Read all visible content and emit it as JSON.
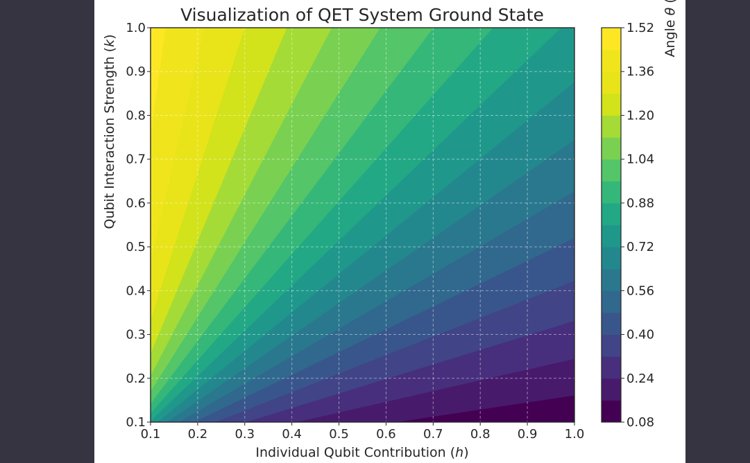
{
  "chart_data": {
    "type": "heatmap",
    "subtype": "filled-contour",
    "title": "Visualization of QET System Ground State",
    "xlabel_text": "Individual Qubit Contribution (",
    "xlabel_var": "h",
    "xlabel_close": ")",
    "ylabel_text": "Qubit Interaction Strength (",
    "ylabel_var": "k",
    "ylabel_close": ")",
    "colorbar_label_text": "Angle ",
    "colorbar_label_var": "θ",
    "colorbar_label_rest": " (radians)",
    "xlim": [
      0.1,
      1.0
    ],
    "ylim": [
      0.1,
      1.0
    ],
    "xticks": [
      "0.1",
      "0.2",
      "0.3",
      "0.4",
      "0.5",
      "0.6",
      "0.7",
      "0.8",
      "0.9",
      "1.0"
    ],
    "yticks": [
      "0.1",
      "0.2",
      "0.3",
      "0.4",
      "0.5",
      "0.6",
      "0.7",
      "0.8",
      "0.9",
      "1.0"
    ],
    "colorbar_range": [
      0.08,
      1.52
    ],
    "colorbar_ticks": [
      "0.08",
      "0.24",
      "0.40",
      "0.56",
      "0.72",
      "0.88",
      "1.04",
      "1.20",
      "1.36",
      "1.52"
    ],
    "colorbar_tick_values": [
      0.08,
      0.24,
      0.4,
      0.56,
      0.72,
      0.88,
      1.04,
      1.2,
      1.36,
      1.52
    ],
    "contour_levels": [
      0.08,
      0.16,
      0.24,
      0.32,
      0.4,
      0.48,
      0.56,
      0.64,
      0.72,
      0.8,
      0.88,
      0.96,
      1.04,
      1.12,
      1.2,
      1.28,
      1.36,
      1.44,
      1.52
    ],
    "band_colors": [
      "#440154",
      "#481A6C",
      "#472F7D",
      "#414487",
      "#39568C",
      "#31688E",
      "#2A788E",
      "#23888E",
      "#1F988B",
      "#22A884",
      "#35B779",
      "#54C568",
      "#7AD151",
      "#A5DB36",
      "#D2E21B",
      "#E8E419",
      "#F0E51C",
      "#FDE725"
    ],
    "function": "theta = arctan(k / h)",
    "grid": true,
    "grid_style": "dashed",
    "colormap": "viridis"
  }
}
